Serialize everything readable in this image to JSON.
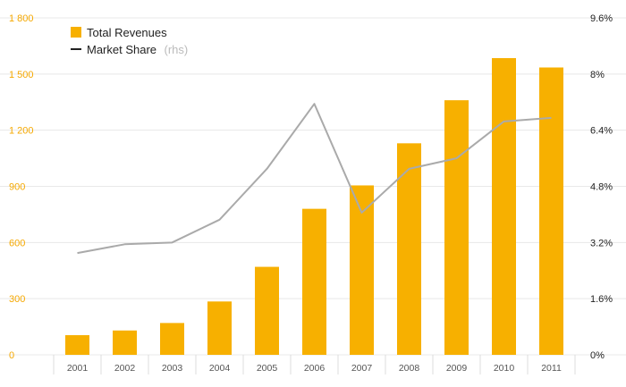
{
  "chart_data": {
    "type": "bar",
    "categories": [
      "2001",
      "2002",
      "2003",
      "2004",
      "2005",
      "2006",
      "2007",
      "2008",
      "2009",
      "2010",
      "2011"
    ],
    "series": [
      {
        "name": "Total Revenues",
        "type": "bar",
        "axis": "left",
        "color": "#f7b000",
        "values": [
          105,
          130,
          170,
          285,
          470,
          780,
          905,
          1130,
          1360,
          1585,
          1535
        ]
      },
      {
        "name": "Market Share",
        "name_suffix": "(rhs)",
        "type": "line",
        "axis": "right",
        "color": "#aaaaaa",
        "values": [
          2.9,
          3.15,
          3.2,
          3.85,
          5.3,
          7.15,
          4.05,
          5.3,
          5.6,
          6.65,
          6.75
        ]
      }
    ],
    "y_left": {
      "min": 0,
      "max": 1800,
      "ticks": [
        0,
        300,
        600,
        900,
        1200,
        1500,
        1800
      ],
      "tick_labels": [
        "0",
        "300",
        "600",
        "900",
        "1 200",
        "1 500",
        "1 800"
      ]
    },
    "y_right": {
      "min": 0,
      "max": 9.6,
      "ticks": [
        0,
        1.6,
        3.2,
        4.8,
        6.4,
        8,
        9.6
      ],
      "tick_labels": [
        "0%",
        "1.6%",
        "3.2%",
        "4.8%",
        "6.4%",
        "8%",
        "9.6%"
      ]
    },
    "legend": {
      "position": "top-left"
    },
    "grid": true
  }
}
